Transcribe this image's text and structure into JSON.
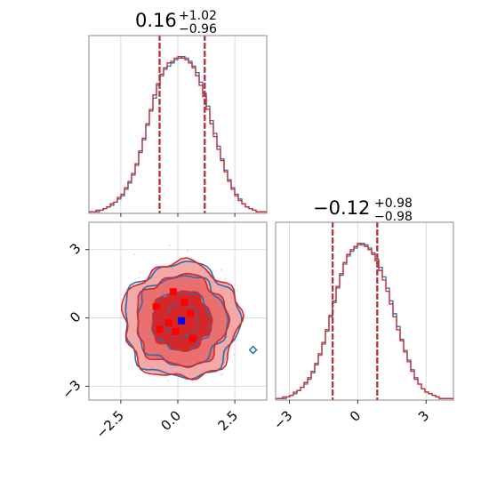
{
  "chart_data": [
    {
      "panel": "top-left",
      "type": "histogram",
      "title_value": "0.16",
      "title_plus": "+1.02",
      "title_minus": "−0.96",
      "xlim": [
        -3.9,
        3.9
      ],
      "xticks": [
        -2.5,
        0.0,
        2.5
      ],
      "grid": true,
      "quantile_lines": [
        -0.8,
        1.18
      ],
      "series": [
        {
          "color": "#1f77b4",
          "values": [
            1,
            1,
            1,
            2,
            3,
            4,
            5,
            7,
            9,
            11,
            15,
            19,
            24,
            30,
            38,
            46,
            55,
            64,
            72,
            80,
            86,
            90,
            92,
            94,
            96,
            97,
            98,
            97,
            95,
            92,
            88,
            82,
            75,
            67,
            58,
            50,
            42,
            34,
            27,
            21,
            16,
            12,
            9,
            6,
            4,
            3,
            2,
            1,
            1,
            1
          ]
        },
        {
          "color": "#d62728",
          "values": [
            1,
            1,
            2,
            2,
            3,
            4,
            6,
            7,
            10,
            12,
            16,
            20,
            25,
            31,
            39,
            47,
            56,
            65,
            74,
            81,
            87,
            91,
            94,
            95,
            97,
            98,
            97,
            96,
            94,
            91,
            86,
            80,
            73,
            65,
            56,
            48,
            40,
            33,
            26,
            20,
            15,
            11,
            8,
            6,
            4,
            3,
            2,
            1,
            1,
            1
          ]
        }
      ]
    },
    {
      "panel": "bottom-left",
      "type": "contour",
      "xlim": [
        -3.9,
        3.9
      ],
      "ylim": [
        -3.6,
        4.2
      ],
      "xticks": [
        -2.5,
        0.0,
        2.5
      ],
      "xtick_labels": [
        "−2.5",
        "0.0",
        "2.5"
      ],
      "yticks": [
        -3,
        0,
        3
      ],
      "ytick_labels": [
        "−3",
        "0",
        "3"
      ],
      "grid": true,
      "fill_colors": [
        "#f4a9a9",
        "#ea6f6f",
        "#d62728"
      ],
      "contour_levels": [
        2.55,
        2.0,
        1.3,
        0.75
      ],
      "blue_center": [
        0.16,
        -0.12
      ],
      "red_points": [
        [
          -0.95,
          0.5
        ],
        [
          -0.2,
          1.15
        ],
        [
          0.55,
          0.2
        ],
        [
          -0.8,
          -0.5
        ],
        [
          0.65,
          -0.9
        ],
        [
          -0.4,
          -0.2
        ],
        [
          0.3,
          0.7
        ],
        [
          -0.1,
          -0.6
        ]
      ]
    },
    {
      "panel": "bottom-right",
      "type": "histogram",
      "title_value": "−0.12",
      "title_plus": "+0.98",
      "title_minus": "−0.98",
      "xlim": [
        -3.6,
        4.2
      ],
      "xticks": [
        -3,
        0,
        3
      ],
      "xtick_labels": [
        "−3",
        "0",
        "3"
      ],
      "grid": true,
      "quantile_lines": [
        -1.1,
        0.86
      ],
      "series": [
        {
          "color": "#1f77b4",
          "values": [
            1,
            1,
            1,
            2,
            3,
            4,
            6,
            8,
            10,
            13,
            17,
            22,
            28,
            35,
            43,
            52,
            61,
            70,
            78,
            85,
            90,
            93,
            95,
            97,
            98,
            97,
            95,
            92,
            88,
            83,
            77,
            70,
            62,
            54,
            46,
            38,
            31,
            25,
            19,
            14,
            10,
            7,
            5,
            4,
            3,
            2,
            1,
            1,
            1,
            1
          ]
        },
        {
          "color": "#d62728",
          "values": [
            1,
            1,
            2,
            2,
            3,
            5,
            6,
            8,
            11,
            14,
            18,
            23,
            29,
            36,
            44,
            53,
            62,
            71,
            79,
            86,
            91,
            94,
            96,
            98,
            97,
            96,
            94,
            91,
            87,
            81,
            75,
            68,
            60,
            52,
            44,
            37,
            30,
            24,
            18,
            13,
            10,
            7,
            5,
            4,
            3,
            2,
            1,
            1,
            1,
            1
          ]
        }
      ]
    }
  ]
}
